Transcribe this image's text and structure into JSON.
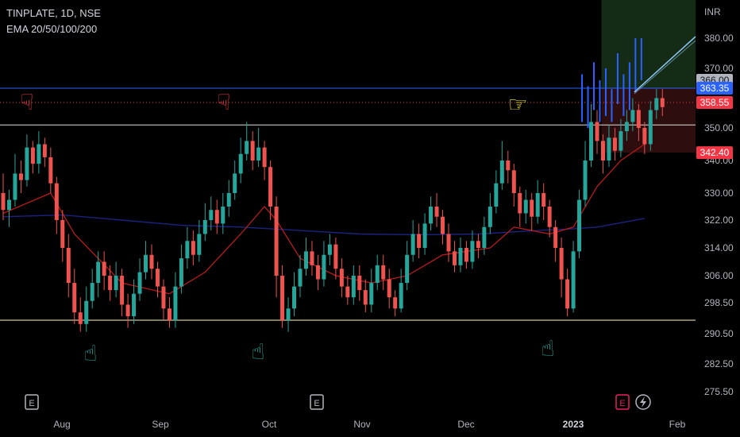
{
  "header": {
    "symbol": "TINPLATE, 1D, NSE",
    "indicator": "EMA 20/50/100/200"
  },
  "axis": {
    "currency": "INR",
    "y_ticks": [
      "380.00",
      "370.00",
      "350.00",
      "340.00",
      "330.00",
      "322.00",
      "314.00",
      "306.00",
      "298.50",
      "290.50",
      "282.50",
      "275.50"
    ],
    "x_ticks": [
      {
        "label": "Aug",
        "bold": false
      },
      {
        "label": "Sep",
        "bold": false
      },
      {
        "label": "Oct",
        "bold": false
      },
      {
        "label": "Nov",
        "bold": false
      },
      {
        "label": "Dec",
        "bold": false
      },
      {
        "label": "2023",
        "bold": true
      },
      {
        "label": "Feb",
        "bold": false
      }
    ]
  },
  "badges": [
    {
      "value": 366.0,
      "text": "366.00",
      "bg": "#b2b5be",
      "fg": "#131722"
    },
    {
      "value": 363.35,
      "text": "363.35",
      "bg": "#2962ff",
      "fg": "#ffffff"
    },
    {
      "value": 358.55,
      "text": "358.55",
      "bg": "#f23645",
      "fg": "#ffffff"
    },
    {
      "value": 342.4,
      "text": "342.40",
      "bg": "#f23645",
      "fg": "#ffffff"
    }
  ],
  "events": [
    {
      "label": "E",
      "color": "#b2b5be"
    },
    {
      "label": "E",
      "color": "#b2b5be"
    },
    {
      "label": "E",
      "color": "#e91e63"
    }
  ],
  "chart_data": {
    "type": "candlestick",
    "price_scale": {
      "min": 275.5,
      "max": 380.0,
      "unit": "INR"
    },
    "horizontal_levels": [
      {
        "price": 363.35,
        "color": "#2962ff"
      },
      {
        "price": 351.0,
        "color": "#e0e0e0"
      },
      {
        "price": 294.0,
        "color": "#fff3c4"
      }
    ],
    "colors": {
      "up": "#26a69a",
      "down": "#ef5350",
      "ema20": "#b71c1c",
      "ema200": "#1a237e",
      "projection": "#2962ff"
    },
    "candles": [
      [
        330,
        325,
        336,
        322
      ],
      [
        325,
        328,
        331,
        320
      ],
      [
        328,
        336,
        342,
        326
      ],
      [
        336,
        334,
        340,
        330
      ],
      [
        334,
        344,
        348,
        332
      ],
      [
        344,
        339,
        346,
        336
      ],
      [
        339,
        345,
        349,
        336
      ],
      [
        345,
        341,
        347,
        338
      ],
      [
        341,
        333,
        344,
        330
      ],
      [
        333,
        322,
        335,
        318
      ],
      [
        322,
        314,
        325,
        310
      ],
      [
        314,
        304,
        318,
        300
      ],
      [
        304,
        296,
        308,
        293
      ],
      [
        296,
        293,
        300,
        291
      ],
      [
        293,
        299,
        303,
        291
      ],
      [
        299,
        304,
        308,
        297
      ],
      [
        304,
        310,
        313,
        300
      ],
      [
        310,
        306,
        313,
        302
      ],
      [
        306,
        302,
        309,
        299
      ],
      [
        302,
        306,
        310,
        300
      ],
      [
        306,
        298,
        308,
        295
      ],
      [
        298,
        295,
        301,
        292
      ],
      [
        295,
        301,
        305,
        293
      ],
      [
        301,
        307,
        311,
        299
      ],
      [
        307,
        312,
        316,
        305
      ],
      [
        312,
        308,
        315,
        305
      ],
      [
        308,
        303,
        310,
        300
      ],
      [
        303,
        297,
        305,
        294
      ],
      [
        297,
        294,
        300,
        292
      ],
      [
        294,
        303,
        307,
        292
      ],
      [
        303,
        311,
        315,
        301
      ],
      [
        311,
        316,
        320,
        308
      ],
      [
        316,
        312,
        319,
        309
      ],
      [
        312,
        318,
        322,
        310
      ],
      [
        318,
        322,
        327,
        316
      ],
      [
        322,
        325,
        329,
        319
      ],
      [
        325,
        321,
        328,
        318
      ],
      [
        321,
        326,
        330,
        318
      ],
      [
        326,
        330,
        334,
        323
      ],
      [
        330,
        336,
        340,
        328
      ],
      [
        336,
        342,
        347,
        333
      ],
      [
        342,
        346,
        352,
        340
      ],
      [
        346,
        340,
        349,
        337
      ],
      [
        340,
        344,
        350,
        338
      ],
      [
        344,
        338,
        346,
        334
      ],
      [
        338,
        326,
        340,
        322
      ],
      [
        326,
        306,
        329,
        300
      ],
      [
        306,
        294,
        309,
        292
      ],
      [
        294,
        297,
        300,
        291
      ],
      [
        297,
        303,
        307,
        295
      ],
      [
        303,
        308,
        312,
        300
      ],
      [
        308,
        313,
        317,
        306
      ],
      [
        313,
        309,
        316,
        306
      ],
      [
        309,
        305,
        312,
        302
      ],
      [
        305,
        312,
        316,
        303
      ],
      [
        312,
        315,
        318,
        309
      ],
      [
        315,
        308,
        317,
        305
      ],
      [
        308,
        303,
        311,
        300
      ],
      [
        303,
        300,
        306,
        298
      ],
      [
        300,
        306,
        309,
        298
      ],
      [
        306,
        302,
        309,
        299
      ],
      [
        302,
        298,
        305,
        296
      ],
      [
        298,
        304,
        308,
        296
      ],
      [
        304,
        309,
        312,
        302
      ],
      [
        309,
        305,
        312,
        302
      ],
      [
        305,
        300,
        308,
        297
      ],
      [
        300,
        297,
        302,
        295
      ],
      [
        297,
        304,
        308,
        296
      ],
      [
        304,
        312,
        316,
        302
      ],
      [
        312,
        318,
        322,
        310
      ],
      [
        318,
        314,
        321,
        311
      ],
      [
        314,
        321,
        324,
        312
      ],
      [
        321,
        326,
        329,
        319
      ],
      [
        326,
        323,
        330,
        320
      ],
      [
        323,
        318,
        325,
        315
      ],
      [
        318,
        313,
        321,
        310
      ],
      [
        313,
        309,
        316,
        307
      ],
      [
        309,
        314,
        317,
        307
      ],
      [
        314,
        310,
        316,
        308
      ],
      [
        310,
        316,
        319,
        308
      ],
      [
        316,
        314,
        318,
        311
      ],
      [
        314,
        320,
        323,
        312
      ],
      [
        320,
        326,
        330,
        318
      ],
      [
        326,
        333,
        337,
        324
      ],
      [
        333,
        340,
        346,
        331
      ],
      [
        340,
        337,
        343,
        333
      ],
      [
        337,
        330,
        339,
        326
      ],
      [
        330,
        324,
        332,
        320
      ],
      [
        324,
        328,
        331,
        321
      ],
      [
        328,
        323,
        330,
        319
      ],
      [
        323,
        330,
        334,
        321
      ],
      [
        330,
        326,
        333,
        322
      ],
      [
        326,
        320,
        328,
        317
      ],
      [
        320,
        314,
        322,
        310
      ],
      [
        314,
        305,
        317,
        300
      ],
      [
        305,
        297,
        308,
        295
      ],
      [
        297,
        313,
        316,
        296
      ],
      [
        313,
        328,
        331,
        311
      ],
      [
        328,
        340,
        346,
        326
      ],
      [
        340,
        352,
        358,
        338
      ],
      [
        352,
        346,
        356,
        342
      ],
      [
        346,
        340,
        348,
        336
      ],
      [
        340,
        347,
        351,
        338
      ],
      [
        347,
        343,
        350,
        340
      ],
      [
        343,
        349,
        353,
        341
      ],
      [
        349,
        352,
        356,
        346
      ],
      [
        352,
        356,
        360,
        349
      ],
      [
        356,
        350,
        358,
        346
      ],
      [
        350,
        345,
        352,
        342
      ],
      [
        345,
        356,
        359,
        343
      ],
      [
        356,
        360,
        363,
        353
      ],
      [
        360,
        357,
        363,
        354
      ]
    ],
    "ema20": [
      [
        0,
        324
      ],
      [
        8,
        330
      ],
      [
        12,
        318
      ],
      [
        20,
        304
      ],
      [
        28,
        301
      ],
      [
        34,
        307
      ],
      [
        40,
        318
      ],
      [
        44,
        326
      ],
      [
        46,
        322
      ],
      [
        50,
        311
      ],
      [
        56,
        306
      ],
      [
        62,
        304
      ],
      [
        68,
        306
      ],
      [
        74,
        312
      ],
      [
        82,
        314
      ],
      [
        86,
        320
      ],
      [
        92,
        318
      ],
      [
        96,
        320
      ],
      [
        100,
        332
      ],
      [
        104,
        340
      ],
      [
        108,
        345
      ]
    ],
    "ema200": [
      [
        0,
        323
      ],
      [
        10,
        323.5
      ],
      [
        20,
        322
      ],
      [
        30,
        320.5
      ],
      [
        40,
        320
      ],
      [
        50,
        319
      ],
      [
        60,
        318
      ],
      [
        70,
        317.8
      ],
      [
        80,
        318
      ],
      [
        90,
        319
      ],
      [
        96,
        319.5
      ],
      [
        100,
        320
      ],
      [
        108,
        322.5
      ]
    ],
    "projection": {
      "from_index": 106,
      "from_price": 362,
      "to_price": 380.5,
      "blue_sticks": [
        [
          98,
          368,
          352
        ],
        [
          99,
          364,
          350
        ],
        [
          100,
          372,
          356
        ],
        [
          101,
          366,
          352
        ],
        [
          102,
          370,
          354
        ],
        [
          103,
          363,
          352
        ],
        [
          104,
          375,
          358
        ],
        [
          105,
          368,
          354
        ],
        [
          106,
          372,
          356
        ],
        [
          107,
          380,
          362
        ],
        [
          108,
          380,
          366
        ]
      ]
    },
    "position": {
      "entry": 363.35,
      "target": 388,
      "stop": 342.4,
      "start_index": 101,
      "end_index": 118
    }
  }
}
